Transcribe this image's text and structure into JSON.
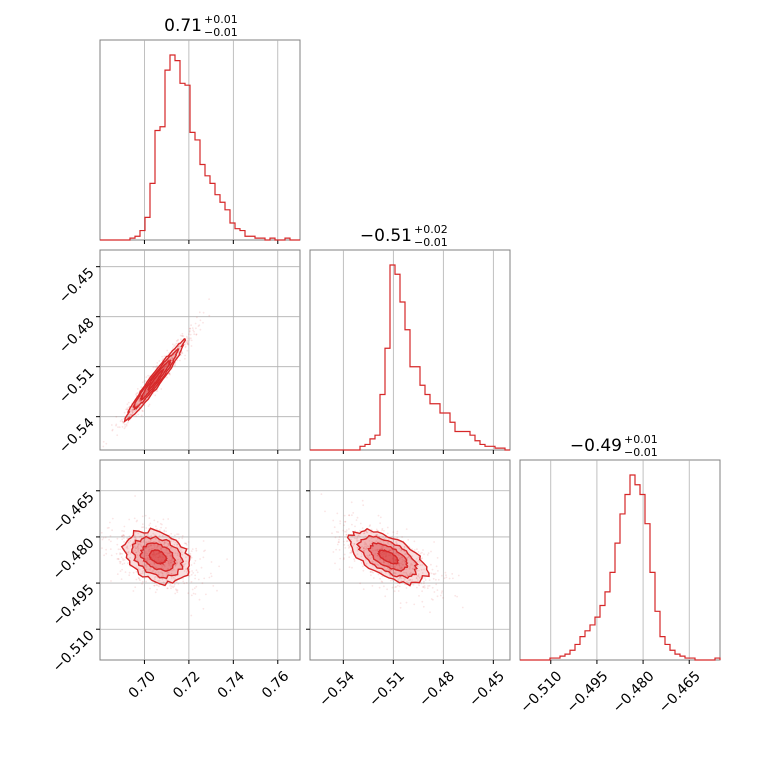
{
  "chart_data": {
    "type": "corner",
    "color": "#d62728",
    "fill_color": "#d62728",
    "grid": true,
    "parameters": [
      "",
      "",
      ""
    ],
    "ranges": [
      [
        0.68,
        0.77
      ],
      [
        -0.56,
        -0.44
      ],
      [
        -0.52,
        -0.455
      ]
    ],
    "ticks": [
      [
        0.7,
        0.72,
        0.74,
        0.76
      ],
      [
        -0.54,
        -0.51,
        -0.48,
        -0.45
      ],
      [
        -0.51,
        -0.495,
        -0.48,
        -0.465
      ]
    ],
    "tick_labels": [
      [
        "0.70",
        "0.72",
        "0.74",
        "0.76"
      ],
      [
        "−0.54",
        "−0.51",
        "−0.48",
        "−0.45"
      ],
      [
        "−0.510",
        "−0.495",
        "−0.480",
        "−0.465"
      ]
    ],
    "titles": [
      {
        "value": "0.71",
        "upper": "+0.01",
        "lower": "−0.01"
      },
      {
        "value": "−0.51",
        "upper": "+0.02",
        "lower": "−0.01"
      },
      {
        "value": "−0.49",
        "upper": "+0.01",
        "lower": "−0.01"
      }
    ],
    "histograms": [
      {
        "bin_start": 0.68,
        "bin_width": 0.00225,
        "counts": [
          0,
          0,
          0,
          0,
          0,
          0,
          1,
          2,
          5,
          12,
          30,
          58,
          60,
          90,
          98,
          95,
          83,
          82,
          57,
          53,
          40,
          34,
          30,
          24,
          20,
          16,
          9,
          6,
          5,
          2,
          2,
          1,
          1,
          0,
          1,
          0,
          0,
          1,
          0,
          0
        ]
      },
      {
        "bin_start": -0.56,
        "bin_width": 0.003,
        "counts": [
          0,
          0,
          0,
          0,
          0,
          0,
          0,
          0,
          0,
          0,
          2,
          3,
          6,
          8,
          30,
          55,
          100,
          95,
          80,
          65,
          45,
          45,
          35,
          30,
          25,
          25,
          20,
          20,
          15,
          10,
          10,
          10,
          8,
          5,
          3,
          2,
          2,
          1,
          1,
          0
        ]
      },
      {
        "bin_start": -0.52,
        "bin_width": 0.001625,
        "counts": [
          0,
          0,
          0,
          0,
          0,
          0,
          1,
          1,
          2,
          3,
          5,
          8,
          12,
          15,
          18,
          22,
          28,
          35,
          45,
          60,
          75,
          85,
          95,
          90,
          85,
          70,
          45,
          25,
          12,
          8,
          5,
          3,
          2,
          1,
          1,
          0,
          0,
          0,
          0,
          1
        ]
      }
    ],
    "correlations": [
      {
        "x_param": 0,
        "y_param": 1,
        "center": [
          0.705,
          -0.518
        ],
        "sigma": [
          0.0065,
          0.0115
        ],
        "rho": 0.97
      },
      {
        "x_param": 0,
        "y_param": 2,
        "center": [
          0.706,
          -0.4865
        ],
        "sigma": [
          0.0075,
          0.0043
        ],
        "rho": -0.3
      },
      {
        "x_param": 1,
        "y_param": 2,
        "center": [
          -0.513,
          -0.4865
        ],
        "sigma": [
          0.0115,
          0.0043
        ],
        "rho": -0.6
      }
    ],
    "levels_sigma": [
      0.5,
      1.0,
      1.5,
      2.0
    ]
  }
}
